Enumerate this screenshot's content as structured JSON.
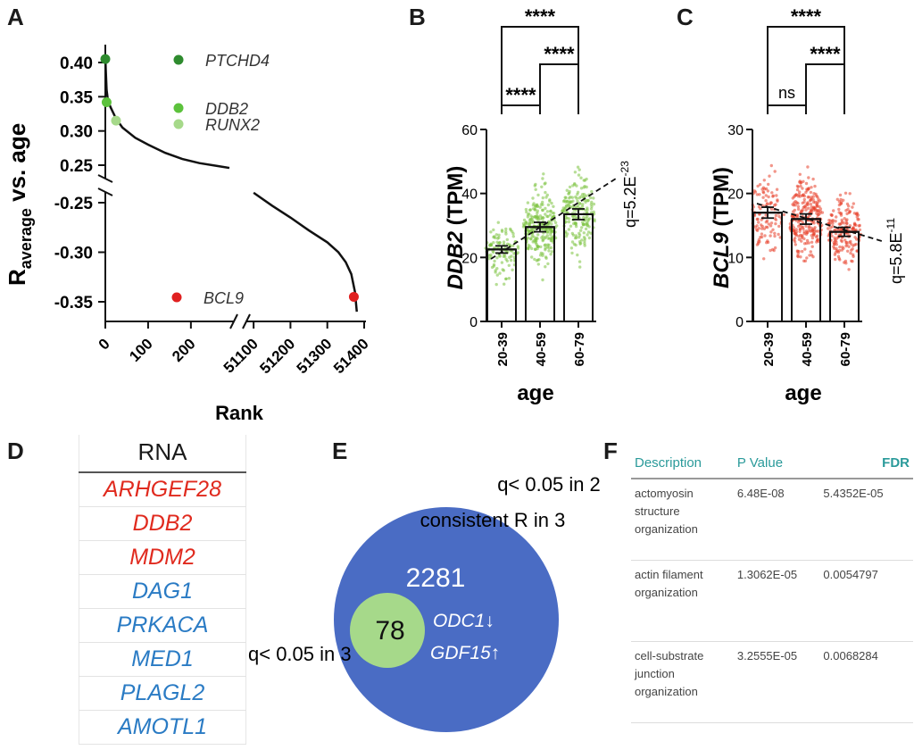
{
  "panels": {
    "a": "A",
    "b": "B",
    "c": "C",
    "d": "D",
    "e": "E",
    "f": "F"
  },
  "chart_data": [
    {
      "type": "line",
      "panel": "A",
      "xlabel": "Rank",
      "ylabel_main": "R",
      "ylabel_sub": "average",
      "ylabel_rest": " vs. age",
      "x_ticks_left": [
        "0",
        "100",
        "200"
      ],
      "x_ticks_right": [
        "51100",
        "51200",
        "51300",
        "51400"
      ],
      "y_ticks_top": [
        "0.40",
        "0.35",
        "0.30",
        "0.25"
      ],
      "y_ticks_bottom": [
        "-0.25",
        "-0.30",
        "-0.35"
      ],
      "highlighted_genes": [
        {
          "name": "PTCHD4",
          "rank": 0,
          "value": 0.405,
          "color": "#2e8b2e"
        },
        {
          "name": "DDB2",
          "rank": 3,
          "value": 0.342,
          "color": "#5cc23c"
        },
        {
          "name": "RUNX2",
          "rank": 25,
          "value": 0.315,
          "color": "#a6d98a"
        },
        {
          "name": "BCL9",
          "rank": 51372,
          "value": -0.345,
          "color": "#e02020"
        }
      ],
      "top_curve": [
        [
          0,
          0.41
        ],
        [
          1,
          0.39
        ],
        [
          3,
          0.36
        ],
        [
          6,
          0.345
        ],
        [
          12,
          0.335
        ],
        [
          25,
          0.318
        ],
        [
          40,
          0.305
        ],
        [
          70,
          0.29
        ],
        [
          100,
          0.28
        ],
        [
          140,
          0.268
        ],
        [
          180,
          0.259
        ],
        [
          220,
          0.253
        ],
        [
          260,
          0.249
        ],
        [
          290,
          0.246
        ]
      ],
      "bottom_curve": [
        [
          51100,
          -0.24
        ],
        [
          51150,
          -0.253
        ],
        [
          51200,
          -0.265
        ],
        [
          51250,
          -0.278
        ],
        [
          51300,
          -0.29
        ],
        [
          51330,
          -0.3
        ],
        [
          51350,
          -0.31
        ],
        [
          51365,
          -0.322
        ],
        [
          51375,
          -0.34
        ],
        [
          51380,
          -0.36
        ]
      ]
    },
    {
      "type": "bar",
      "panel": "B",
      "gene": "DDB2",
      "ylabel_gene": "DDB2",
      "ylabel_unit": " (TPM)",
      "xlabel": "age",
      "categories": [
        "20-39",
        "40-59",
        "60-79"
      ],
      "values": [
        22.5,
        29.5,
        33.5
      ],
      "ylim": [
        0,
        60
      ],
      "y_ticks": [
        "0",
        "20",
        "40",
        "60"
      ],
      "point_color": "#7cc33f",
      "q_label": "q=5.2E",
      "q_exp": "-23",
      "significance": [
        "****",
        "****",
        "****"
      ]
    },
    {
      "type": "bar",
      "panel": "C",
      "gene": "BCL9",
      "ylabel_gene": "BCL9",
      "ylabel_unit": " (TPM)",
      "xlabel": "age",
      "categories": [
        "20-39",
        "40-59",
        "60-79"
      ],
      "values": [
        17.0,
        16.0,
        14.0
      ],
      "ylim": [
        0,
        30
      ],
      "y_ticks": [
        "0",
        "10",
        "20",
        "30"
      ],
      "point_color": "#e8402a",
      "q_label": "q=5.8E",
      "q_exp": "-11",
      "significance": [
        "****",
        "****",
        "ns"
      ]
    }
  ],
  "table_d": {
    "header": "RNA",
    "rows": [
      {
        "gene": "ARHGEF28",
        "color": "#e02a1e"
      },
      {
        "gene": "DDB2",
        "color": "#e02a1e"
      },
      {
        "gene": "MDM2",
        "color": "#e02a1e"
      },
      {
        "gene": "DAG1",
        "color": "#2a7bc4"
      },
      {
        "gene": "PRKACA",
        "color": "#2a7bc4"
      },
      {
        "gene": "MED1",
        "color": "#2a7bc4"
      },
      {
        "gene": "PLAGL2",
        "color": "#2a7bc4"
      },
      {
        "gene": "AMOTL1",
        "color": "#2a7bc4"
      }
    ]
  },
  "venn_e": {
    "outer_label_1": "q< 0.05 in 2",
    "outer_label_2": "consistent R in 3",
    "outer_count": "2281",
    "inner_count": "78",
    "inner_label": "q< 0.05 in 3",
    "gene_1": "ODC1↓",
    "gene_2": "GDF15↑",
    "outer_color": "#4a6cc4",
    "inner_color": "#a6d98a"
  },
  "table_f": {
    "headers": [
      "Description",
      "P Value",
      "FDR"
    ],
    "rows": [
      {
        "description": "actomyosin structure organization",
        "p": "6.48E-08",
        "fdr": "5.4352E-05"
      },
      {
        "description": "actin filament organization",
        "p": "1.3062E-05",
        "fdr": "0.0054797"
      },
      {
        "description": "cell-substrate junction organization",
        "p": "3.2555E-05",
        "fdr": "0.0068284"
      }
    ]
  }
}
